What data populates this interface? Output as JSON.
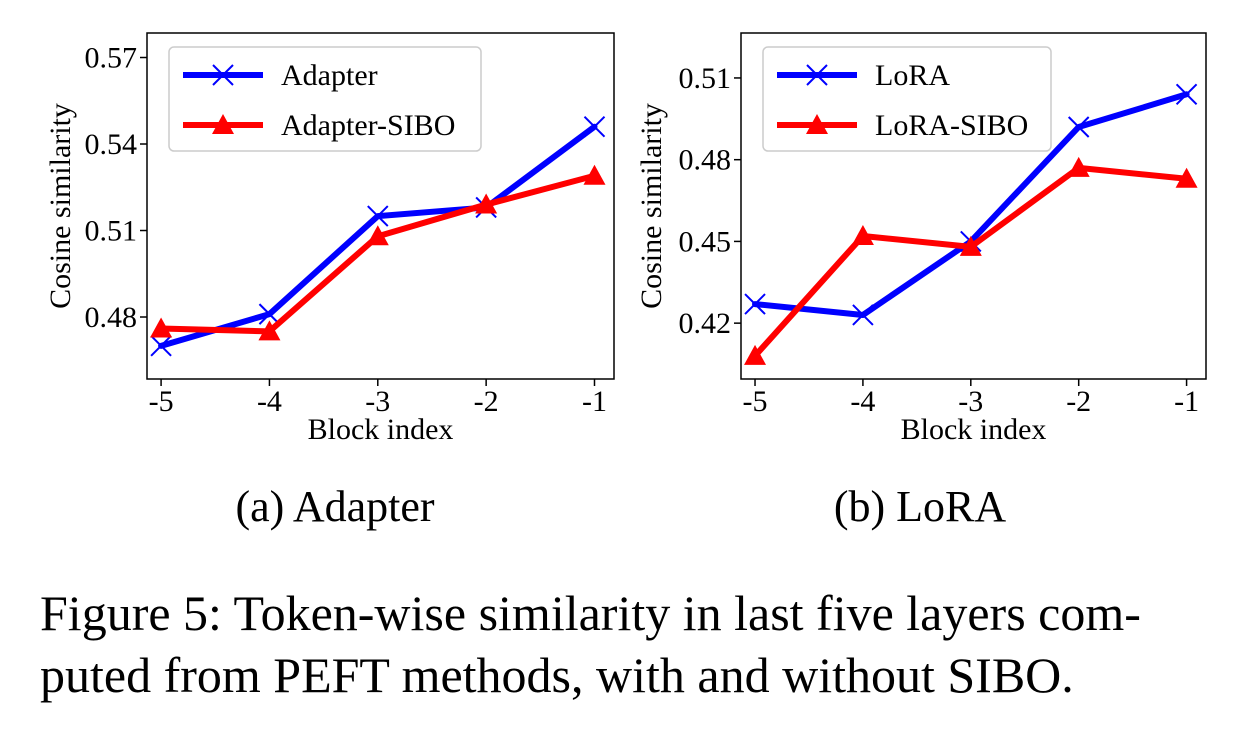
{
  "chart_data": [
    {
      "type": "line",
      "caption": "(a) Adapter",
      "xlabel": "Block index",
      "ylabel": "Cosine similarity",
      "categories": [
        "-5",
        "-4",
        "-3",
        "-2",
        "-1"
      ],
      "x": [
        -5,
        -4,
        -3,
        -2,
        -1
      ],
      "yticks": [
        "0.48",
        "0.51",
        "0.54",
        "0.57"
      ],
      "ylim": [
        0.4585,
        0.5785
      ],
      "xlim": [
        -5.13,
        -0.82
      ],
      "grid": false,
      "legend_position": "top-left",
      "series": [
        {
          "name": "Adapter",
          "values": [
            0.47,
            0.481,
            0.515,
            0.518,
            0.546
          ],
          "color": "#0000ff",
          "marker": "x"
        },
        {
          "name": "Adapter-SIBO",
          "values": [
            0.476,
            0.475,
            0.508,
            0.519,
            0.529
          ],
          "color": "#ff0000",
          "marker": "triangle"
        }
      ]
    },
    {
      "type": "line",
      "caption": "(b) LoRA",
      "xlabel": "Block index",
      "ylabel": "Cosine similarity",
      "categories": [
        "-5",
        "-4",
        "-3",
        "-2",
        "-1"
      ],
      "x": [
        -5,
        -4,
        -3,
        -2,
        -1
      ],
      "yticks": [
        "0.42",
        "0.45",
        "0.48",
        "0.51"
      ],
      "ylim": [
        0.3995,
        0.5265
      ],
      "xlim": [
        -5.13,
        -0.82
      ],
      "grid": false,
      "legend_position": "top-left",
      "series": [
        {
          "name": "LoRA",
          "values": [
            0.427,
            0.423,
            0.45,
            0.492,
            0.504
          ],
          "color": "#0000ff",
          "marker": "x"
        },
        {
          "name": "LoRA-SIBO",
          "values": [
            0.408,
            0.452,
            0.448,
            0.477,
            0.473
          ],
          "color": "#ff0000",
          "marker": "triangle"
        }
      ]
    }
  ],
  "caption": {
    "line1": "Figure 5: Token-wise similarity in last five layers com-",
    "line2": "puted from PEFT methods, with and without SIBO."
  }
}
